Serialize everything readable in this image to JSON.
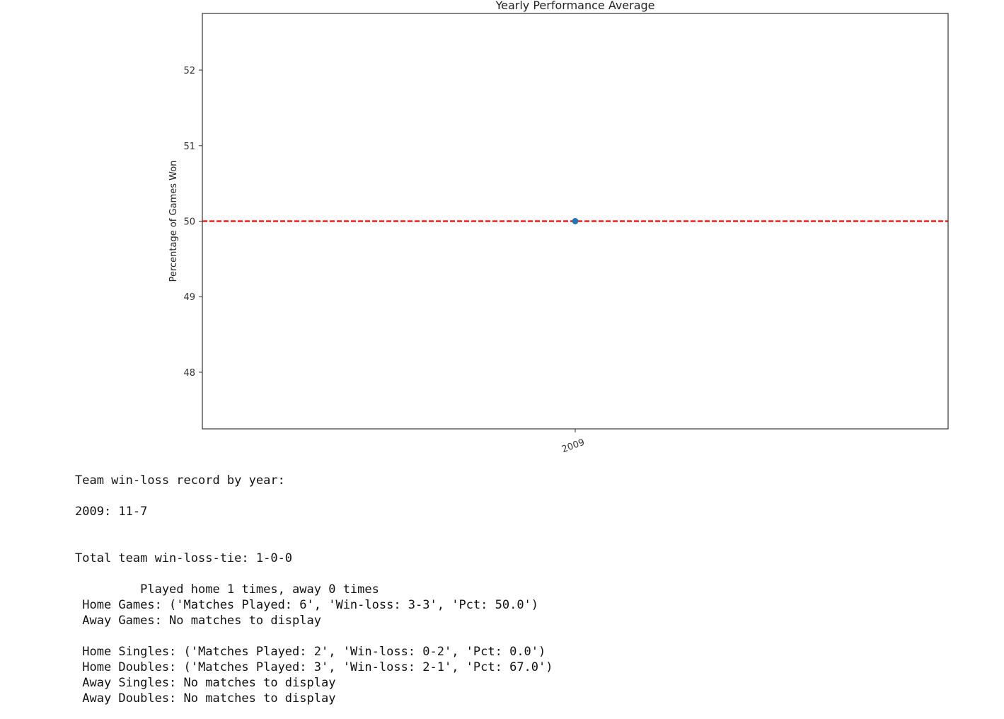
{
  "chart_data": {
    "type": "scatter",
    "title": "Yearly Performance Average",
    "xlabel": "",
    "ylabel": "Percentage of Games Won",
    "categories": [
      "2009"
    ],
    "series": [
      {
        "values": [
          50.0
        ],
        "color": "#1f77b4"
      }
    ],
    "reference_line": {
      "y": 50,
      "color": "#ff0000",
      "style": "dashed"
    },
    "ylim": [
      47.25,
      52.75
    ],
    "yticks": [
      48,
      49,
      50,
      51,
      52
    ],
    "xtick_rotation": "rotated",
    "grid": false,
    "legend": "none"
  },
  "output": {
    "lines": [
      {
        "text": "Team win-loss record by year:"
      },
      {
        "text": ""
      },
      {
        "text": "2009: 11-7"
      },
      {
        "text": ""
      },
      {
        "text": ""
      },
      {
        "text": "Total team win-loss-tie: 1-0-0"
      },
      {
        "text": ""
      },
      {
        "text": "         Played home 1 times, away 0 times"
      },
      {
        "text": " Home Games: ('Matches Played: 6', 'Win-loss: 3-3', 'Pct: 50.0')"
      },
      {
        "text": " Away Games: No matches to display"
      },
      {
        "text": ""
      },
      {
        "text": " Home Singles: ('Matches Played: 2', 'Win-loss: 0-2', 'Pct: 0.0')"
      },
      {
        "text": " Home Doubles: ('Matches Played: 3', 'Win-loss: 2-1', 'Pct: 67.0')"
      },
      {
        "text": " Away Singles: No matches to display"
      },
      {
        "text": " Away Doubles: No matches to display"
      }
    ]
  }
}
